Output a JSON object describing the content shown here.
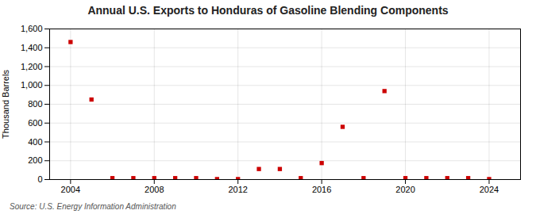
{
  "chart_data": {
    "type": "scatter",
    "title": "Annual U.S. Exports to Honduras of Gasoline Blending Components",
    "ylabel": "Thousand Barrels",
    "source": "Source: U.S. Energy Information Administration",
    "x": [
      2004,
      2005,
      2006,
      2007,
      2008,
      2009,
      2010,
      2011,
      2012,
      2013,
      2014,
      2015,
      2016,
      2017,
      2018,
      2019,
      2020,
      2021,
      2022,
      2023,
      2024
    ],
    "values": [
      1461,
      850,
      15,
      15,
      15,
      15,
      15,
      5,
      5,
      112,
      112,
      15,
      175,
      560,
      15,
      940,
      15,
      15,
      15,
      15,
      5
    ],
    "color": "#cc0000",
    "marker": "square",
    "xlim": [
      2003,
      2025.5
    ],
    "ylim": [
      0,
      1600
    ],
    "xticks": [
      2004,
      2008,
      2012,
      2016,
      2020,
      2024
    ],
    "yticks": [
      0,
      200,
      400,
      600,
      800,
      {
        "value": 1000,
        "label": "1,000"
      },
      {
        "value": 1200,
        "label": "1,200"
      },
      {
        "value": 1400,
        "label": "1,400"
      },
      {
        "value": 1600,
        "label": "1,600"
      }
    ],
    "grid": true
  }
}
